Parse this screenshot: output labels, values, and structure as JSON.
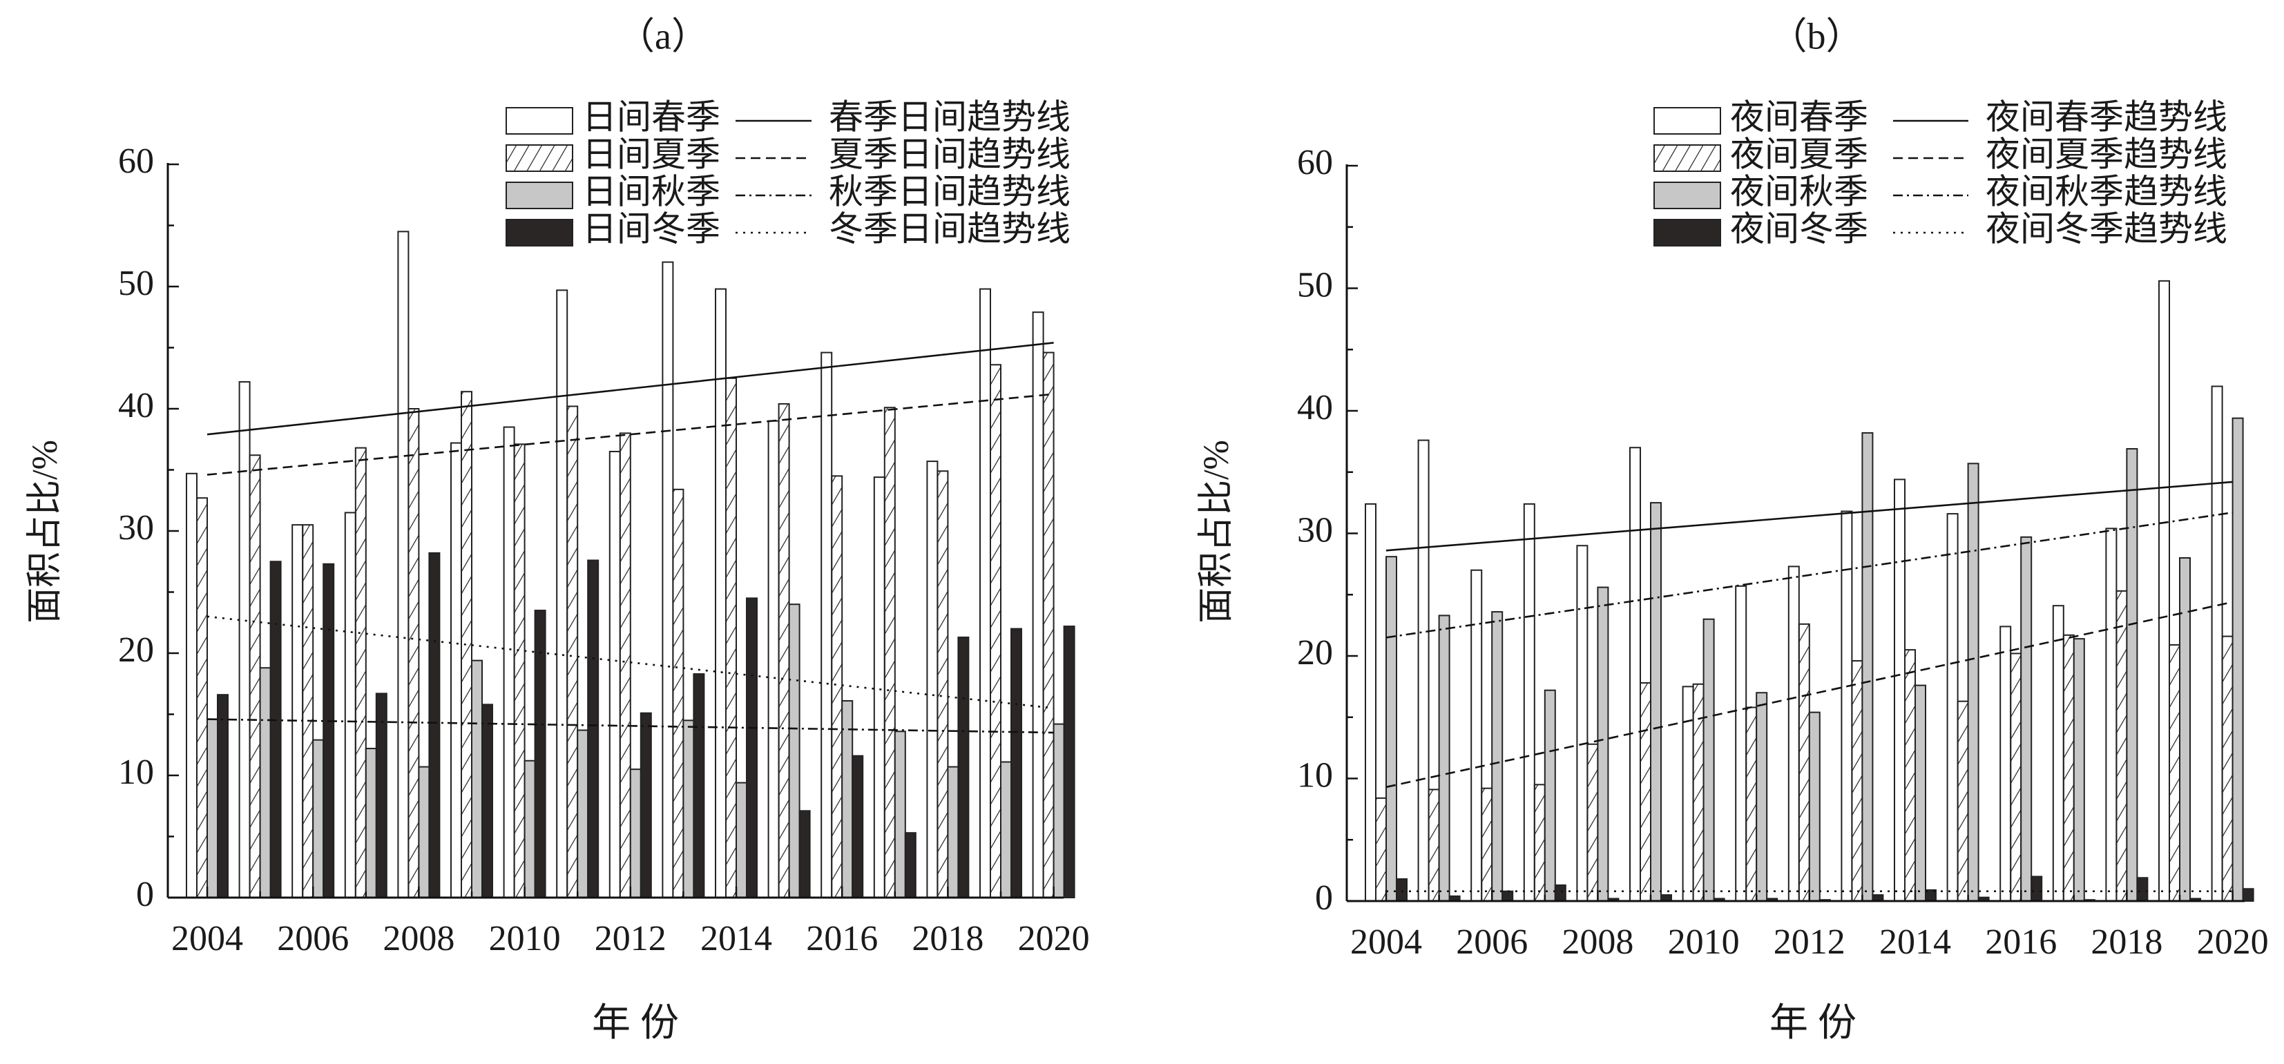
{
  "chart_data": [
    {
      "type": "bar",
      "title": "（a）",
      "xlabel": "年 份",
      "ylabel": "面积占比/%",
      "ylim": [
        0,
        60
      ],
      "yticks": [
        0,
        10,
        20,
        30,
        40,
        50,
        60
      ],
      "x": [
        2004,
        2005,
        2006,
        2007,
        2008,
        2009,
        2010,
        2011,
        2012,
        2013,
        2014,
        2015,
        2016,
        2017,
        2018,
        2019,
        2020
      ],
      "xtick_labels": [
        "2004",
        "2006",
        "2008",
        "2010",
        "2012",
        "2014",
        "2016",
        "2018",
        "2020"
      ],
      "series": [
        {
          "name": "日间春季",
          "values": [
            34.7,
            42.2,
            30.5,
            31.5,
            54.5,
            37.2,
            38.5,
            49.7,
            36.5,
            52.0,
            49.8,
            39.0,
            44.6,
            34.4,
            35.7,
            49.8,
            47.9
          ]
        },
        {
          "name": "日间夏季",
          "values": [
            32.7,
            36.2,
            30.5,
            36.8,
            40.0,
            41.4,
            37.1,
            40.2,
            38.0,
            33.4,
            42.5,
            40.4,
            34.5,
            40.1,
            34.9,
            43.6,
            44.6
          ]
        },
        {
          "name": "日间秋季",
          "values": [
            14.6,
            18.8,
            12.9,
            12.2,
            10.7,
            19.4,
            11.2,
            13.7,
            10.5,
            14.5,
            9.4,
            24.0,
            16.1,
            13.6,
            10.7,
            11.1,
            14.2
          ]
        },
        {
          "name": "日间冬季",
          "values": [
            16.6,
            27.5,
            27.3,
            16.7,
            28.2,
            15.8,
            23.5,
            27.6,
            15.1,
            18.3,
            24.5,
            7.1,
            11.6,
            5.3,
            21.3,
            22.0,
            22.2
          ]
        }
      ],
      "trendlines": [
        {
          "name": "春季日间趋势线",
          "style": "solid",
          "start": 37.9,
          "end": 45.4
        },
        {
          "name": "夏季日间趋势线",
          "style": "dashed",
          "start": 34.6,
          "end": 41.2
        },
        {
          "name": "秋季日间趋势线",
          "style": "dashdot",
          "start": 14.6,
          "end": 13.5
        },
        {
          "name": "冬季日间趋势线",
          "style": "dotted",
          "start": 23.0,
          "end": 15.5
        }
      ],
      "legend_position": "top-right"
    },
    {
      "type": "bar",
      "title": "（b）",
      "xlabel": "年 份",
      "ylabel": "面积占比/%",
      "ylim": [
        0,
        60
      ],
      "yticks": [
        0,
        10,
        20,
        30,
        40,
        50,
        60
      ],
      "x": [
        2004,
        2005,
        2006,
        2007,
        2008,
        2009,
        2010,
        2011,
        2012,
        2013,
        2014,
        2015,
        2016,
        2017,
        2018,
        2019,
        2020
      ],
      "xtick_labels": [
        "2004",
        "2006",
        "2008",
        "2010",
        "2012",
        "2014",
        "2016",
        "2018",
        "2020"
      ],
      "series": [
        {
          "name": "夜间春季",
          "values": [
            32.4,
            37.6,
            27.0,
            32.4,
            29.0,
            37.0,
            17.5,
            25.7,
            27.3,
            31.8,
            34.4,
            31.6,
            22.4,
            24.1,
            30.4,
            50.6,
            42.0
          ]
        },
        {
          "name": "夜间夏季",
          "values": [
            8.4,
            9.1,
            9.2,
            9.5,
            12.8,
            17.8,
            17.7,
            15.8,
            22.6,
            19.6,
            20.5,
            16.3,
            20.2,
            21.7,
            25.3,
            20.9,
            21.6
          ]
        },
        {
          "name": "夜间秋季",
          "values": [
            28.1,
            23.3,
            23.6,
            17.2,
            25.6,
            32.5,
            23.0,
            17.0,
            15.4,
            38.2,
            17.6,
            35.7,
            29.7,
            21.4,
            36.9,
            28.0,
            39.4
          ]
        },
        {
          "name": "夜间冬季",
          "values": [
            1.8,
            0.4,
            0.8,
            1.3,
            0.2,
            0.5,
            0.2,
            0.2,
            0.1,
            0.5,
            0.9,
            0.3,
            2.0,
            0.1,
            1.9,
            0.2,
            1.0
          ]
        }
      ],
      "trendlines": [
        {
          "name": "夜间春季趋势线",
          "style": "solid",
          "start": 28.6,
          "end": 34.2
        },
        {
          "name": "夜间夏季趋势线",
          "style": "dashed",
          "start": 9.3,
          "end": 24.4
        },
        {
          "name": "夜间秋季趋势线",
          "style": "dashdot",
          "start": 21.5,
          "end": 31.7
        },
        {
          "name": "夜间冬季趋势线",
          "style": "dotted",
          "start": 0.8,
          "end": 0.8
        }
      ],
      "legend_position": "top-right"
    }
  ]
}
